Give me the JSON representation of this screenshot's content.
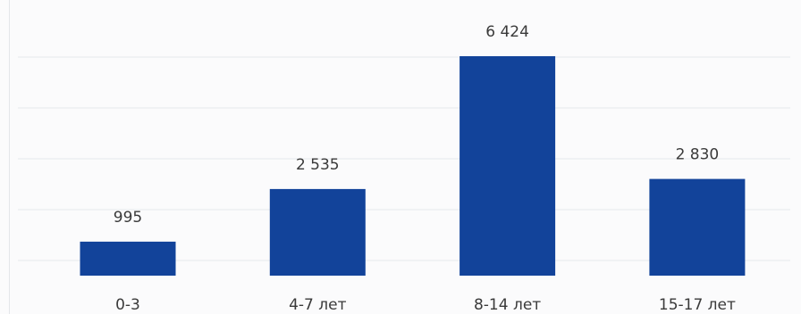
{
  "chart_data": {
    "type": "bar",
    "categories": [
      "0-3",
      "4-7 лет",
      "8-14 лет",
      "15-17 лет"
    ],
    "values": [
      995,
      2535,
      6424,
      2830
    ],
    "value_labels": [
      "995",
      "2 535",
      "6 424",
      "2 830"
    ],
    "ylim": [
      0,
      7000
    ],
    "grid": true,
    "legend": "none",
    "colors": {
      "bar": "#12439a"
    }
  }
}
